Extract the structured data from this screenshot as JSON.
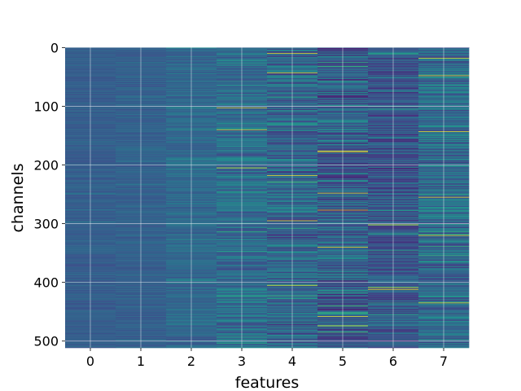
{
  "chart_data": {
    "type": "heatmap",
    "xlabel": "features",
    "ylabel": "channels",
    "x_ticks": [
      "0",
      "1",
      "2",
      "3",
      "4",
      "5",
      "6",
      "7"
    ],
    "y_ticks": [
      "0",
      "100",
      "200",
      "300",
      "400",
      "500"
    ],
    "x_range": [
      -0.5,
      7.5
    ],
    "y_range": [
      0,
      511
    ],
    "y_inverted": true,
    "rows": 512,
    "grid": true,
    "colormap": "viridis",
    "columns": [
      {
        "feature": 0,
        "level": 0.3,
        "spread": 0.05,
        "peaks": []
      },
      {
        "feature": 1,
        "level": 0.31,
        "spread": 0.05,
        "peaks": []
      },
      {
        "feature": 2,
        "level": 0.34,
        "spread": 0.08,
        "peaks": []
      },
      {
        "feature": 3,
        "level": 0.36,
        "spread": 0.14,
        "peaks": [
          103,
          140,
          205
        ]
      },
      {
        "feature": 4,
        "level": 0.33,
        "spread": 0.18,
        "peaks": [
          10,
          43,
          218,
          295,
          405
        ]
      },
      {
        "feature": 5,
        "level": 0.3,
        "spread": 0.2,
        "peaks": [
          176,
          178,
          248,
          277,
          340,
          458,
          474
        ]
      },
      {
        "feature": 6,
        "level": 0.27,
        "spread": 0.16,
        "peaks": [
          302,
          409,
          412
        ]
      },
      {
        "feature": 7,
        "level": 0.35,
        "spread": 0.18,
        "peaks": [
          18,
          48,
          143,
          255,
          320,
          435
        ]
      }
    ]
  }
}
